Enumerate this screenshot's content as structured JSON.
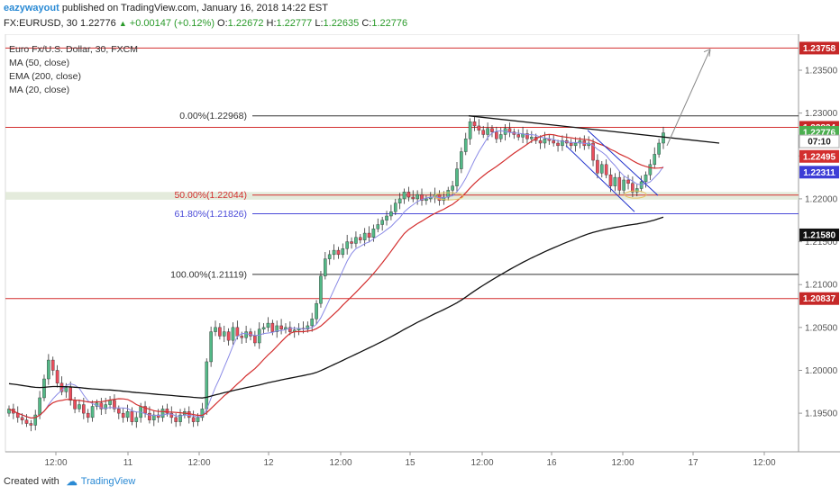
{
  "header": {
    "author": "eazywayout",
    "published": "published on TradingView.com, January 16, 2018 14:22 EST",
    "symbol_line": {
      "symbol": "FX:EURUSD, 30",
      "price": "1.22776",
      "change": "+0.00147 (+0.12%)",
      "o_label": "O:",
      "o_value": "1.22672",
      "h_label": "H:",
      "h_value": "1.22777",
      "l_label": "L:",
      "l_value": "1.22635",
      "c_label": "C:",
      "c_value": "1.22776"
    }
  },
  "legend": {
    "title": "Euro Fx/U.S. Dollar, 30, FXCM",
    "ma50": "MA (50, close)",
    "ema200": "EMA (200, close)",
    "ma20": "MA (20, close)"
  },
  "footer": {
    "created_with": "Created with",
    "brand": "TradingView"
  },
  "colors": {
    "up": "#53b987",
    "down": "#eb4d5c",
    "ma20": "#8a8ae6",
    "ma50": "#d32f2f",
    "ema200": "#111111",
    "fib": "#333333",
    "fib_red": "#d32f2f",
    "fib_blue": "#4a4ad8",
    "price_badge": "#53b987"
  },
  "chart_data": {
    "type": "candlestick",
    "ylim": [
      1.1905,
      1.2392
    ],
    "y_ticks": [
      "1.19500",
      "1.20000",
      "1.20500",
      "1.21000",
      "1.21500",
      "1.22000",
      "1.22500",
      "1.23000",
      "1.23500"
    ],
    "x_ticks": [
      "12:00",
      "11",
      "12:00",
      "12",
      "12:00",
      "15",
      "12:00",
      "16",
      "12:00",
      "17",
      "12:00"
    ],
    "fib_levels": [
      {
        "label": "0.00%(1.22968)",
        "value": 1.22968
      },
      {
        "label": "50.00%(1.22044)",
        "value": 1.22044
      },
      {
        "label": "61.80%(1.21826)",
        "value": 1.21826
      },
      {
        "label": "100.00%(1.21119)",
        "value": 1.21119
      }
    ],
    "horizontal_levels": [
      1.23758,
      1.22834,
      1.20837,
      1.2158
    ],
    "price_labels": [
      {
        "value": "1.23758",
        "kind": "level"
      },
      {
        "value": "1.22834",
        "kind": "level"
      },
      {
        "value": "1.22776",
        "kind": "price"
      },
      {
        "value": "07:10",
        "kind": "timer"
      },
      {
        "value": "1.22495",
        "kind": "ma50"
      },
      {
        "value": "1.22311",
        "kind": "ma20"
      },
      {
        "value": "1.21580",
        "kind": "ema200"
      },
      {
        "value": "1.20837",
        "kind": "level"
      }
    ],
    "closes": [
      1.1955,
      1.195,
      1.1945,
      1.1942,
      1.1938,
      1.1936,
      1.1948,
      1.1968,
      1.199,
      1.2012,
      1.2,
      1.1985,
      1.1975,
      1.198,
      1.1965,
      1.1955,
      1.196,
      1.195,
      1.1945,
      1.1958,
      1.1962,
      1.1955,
      1.196,
      1.1965,
      1.1955,
      1.195,
      1.1945,
      1.1952,
      1.194,
      1.1945,
      1.1958,
      1.195,
      1.1942,
      1.1948,
      1.1945,
      1.1955,
      1.195,
      1.1945,
      1.194,
      1.1948,
      1.1952,
      1.1945,
      1.194,
      1.1945,
      1.1955,
      1.201,
      1.2045,
      1.205,
      1.204,
      1.2045,
      1.2035,
      1.205,
      1.204,
      1.2038,
      1.2045,
      1.204,
      1.2032,
      1.2048,
      1.205,
      1.2055,
      1.2045,
      1.2052,
      1.2048,
      1.205,
      1.2045,
      1.2047,
      1.2049,
      1.2048,
      1.2052,
      1.206,
      1.2078,
      1.211,
      1.213,
      1.2135,
      1.214,
      1.2135,
      1.2142,
      1.215,
      1.2148,
      1.2155,
      1.2152,
      1.216,
      1.2155,
      1.2165,
      1.217,
      1.2175,
      1.218,
      1.2185,
      1.2195,
      1.22,
      1.2208,
      1.2202,
      1.22,
      1.2205,
      1.2198,
      1.22,
      1.2202,
      1.2205,
      1.2198,
      1.2202,
      1.221,
      1.2215,
      1.2235,
      1.2255,
      1.227,
      1.229,
      1.2285,
      1.228,
      1.2275,
      1.2282,
      1.2278,
      1.227,
      1.2275,
      1.2282,
      1.2278,
      1.2275,
      1.2272,
      1.2276,
      1.227,
      1.2272,
      1.2268,
      1.2265,
      1.227,
      1.2268,
      1.2265,
      1.2262,
      1.2268,
      1.2265,
      1.2262,
      1.2265,
      1.2268,
      1.2262,
      1.2265,
      1.2245,
      1.223,
      1.224,
      1.2228,
      1.2215,
      1.2225,
      1.221,
      1.2222,
      1.2218,
      1.2208,
      1.2212,
      1.222,
      1.2228,
      1.224,
      1.2252,
      1.2265,
      1.2277
    ]
  }
}
